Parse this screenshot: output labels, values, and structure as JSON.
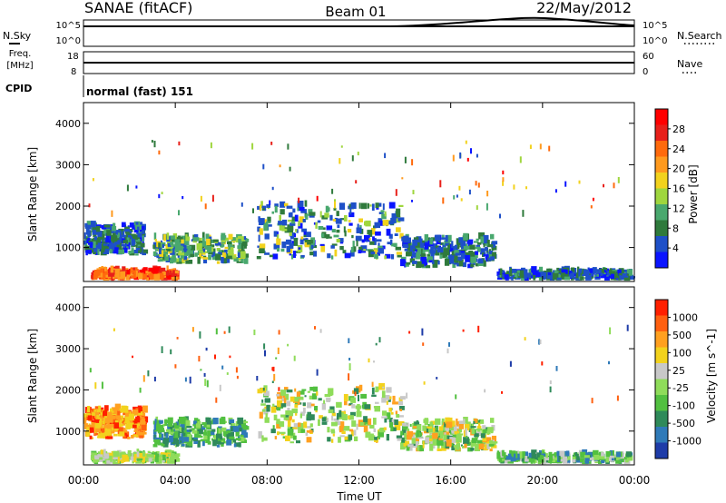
{
  "header": {
    "station": "SANAE (fitACF)",
    "beam": "Beam 01",
    "date": "22/May/2012"
  },
  "top_panels": {
    "nsky_label": "N.Sky",
    "nsky_ticks": [
      "10^5",
      "10^0"
    ],
    "nsearch_label": "N.Search",
    "nsearch_ticks": [
      "10^5",
      "10^0"
    ],
    "freq_label_1": "Freq.",
    "freq_label_2": "[MHz]",
    "freq_ticks": [
      "18",
      "8"
    ],
    "nave_label": "Nave",
    "nave_ticks": [
      "60",
      "0"
    ],
    "cpid_label": "CPID",
    "cpid_text": "normal (fast) 151"
  },
  "chart_data": [
    {
      "type": "heatmap",
      "name": "power",
      "ylabel": "Slant Range [km]",
      "yticks": [
        "1000",
        "2000",
        "3000",
        "4000"
      ],
      "ylim": [
        180,
        4500
      ],
      "xlim": [
        0,
        24
      ],
      "colorbar": {
        "label": "Power [dB]",
        "ticks": [
          "4",
          "8",
          "12",
          "16",
          "20",
          "24",
          "28"
        ],
        "colors": [
          "#0a14ff",
          "#1e50c8",
          "#2f7a3c",
          "#49a86e",
          "#9fd63e",
          "#f2d21d",
          "#ff9a1e",
          "#ff6a0c",
          "#e8201a",
          "#ff0000"
        ]
      },
      "echo_bands": [
        {
          "t0": 0.0,
          "t1": 2.6,
          "r0": 800,
          "r1": 1500,
          "dominant": "blue-green"
        },
        {
          "t0": 0.3,
          "t1": 4.0,
          "r0": 200,
          "r1": 400,
          "dominant": "orange-red"
        },
        {
          "t0": 3.0,
          "t1": 7.0,
          "r0": 600,
          "r1": 1200,
          "dominant": "green-yellow"
        },
        {
          "t0": 7.5,
          "t1": 13.8,
          "r0": 700,
          "r1": 2000,
          "dominant": "blue-green-yellow"
        },
        {
          "t0": 13.8,
          "t1": 17.8,
          "r0": 500,
          "r1": 1200,
          "dominant": "blue-green"
        },
        {
          "t0": 18.0,
          "t1": 23.8,
          "r0": 200,
          "r1": 400,
          "dominant": "blue-green"
        }
      ]
    },
    {
      "type": "heatmap",
      "name": "velocity",
      "ylabel": "Slant Range [km]",
      "yticks": [
        "1000",
        "2000",
        "3000",
        "4000"
      ],
      "ylim": [
        180,
        4500
      ],
      "xlim": [
        0,
        24
      ],
      "xlabel": "Time UT",
      "xticks": [
        "00:00",
        "04:00",
        "08:00",
        "12:00",
        "16:00",
        "20:00",
        "00:00"
      ],
      "colorbar": {
        "label": "Velocity [m s^-1]",
        "ticks": [
          "1000",
          "500",
          "100",
          "25",
          "-25",
          "-100",
          "-500",
          "-1000"
        ],
        "colors": [
          "#1e3ca8",
          "#2f7ab8",
          "#2f8a5a",
          "#52c040",
          "#8fdc5a",
          "#c8c8c8",
          "#f2d21d",
          "#ffa020",
          "#ff6010",
          "#ff2000"
        ]
      },
      "echo_bands": [
        {
          "t0": 0.0,
          "t1": 2.6,
          "r0": 800,
          "r1": 1500,
          "dominant": "orange-red"
        },
        {
          "t0": 0.3,
          "t1": 4.0,
          "r0": 200,
          "r1": 400,
          "dominant": "yellow-green"
        },
        {
          "t0": 3.0,
          "t1": 7.0,
          "r0": 600,
          "r1": 1200,
          "dominant": "green"
        },
        {
          "t0": 7.5,
          "t1": 13.8,
          "r0": 700,
          "r1": 2000,
          "dominant": "green-orange"
        },
        {
          "t0": 13.8,
          "t1": 17.8,
          "r0": 500,
          "r1": 1200,
          "dominant": "green-orange"
        },
        {
          "t0": 18.0,
          "t1": 23.8,
          "r0": 200,
          "r1": 400,
          "dominant": "green-yellow"
        }
      ]
    }
  ]
}
